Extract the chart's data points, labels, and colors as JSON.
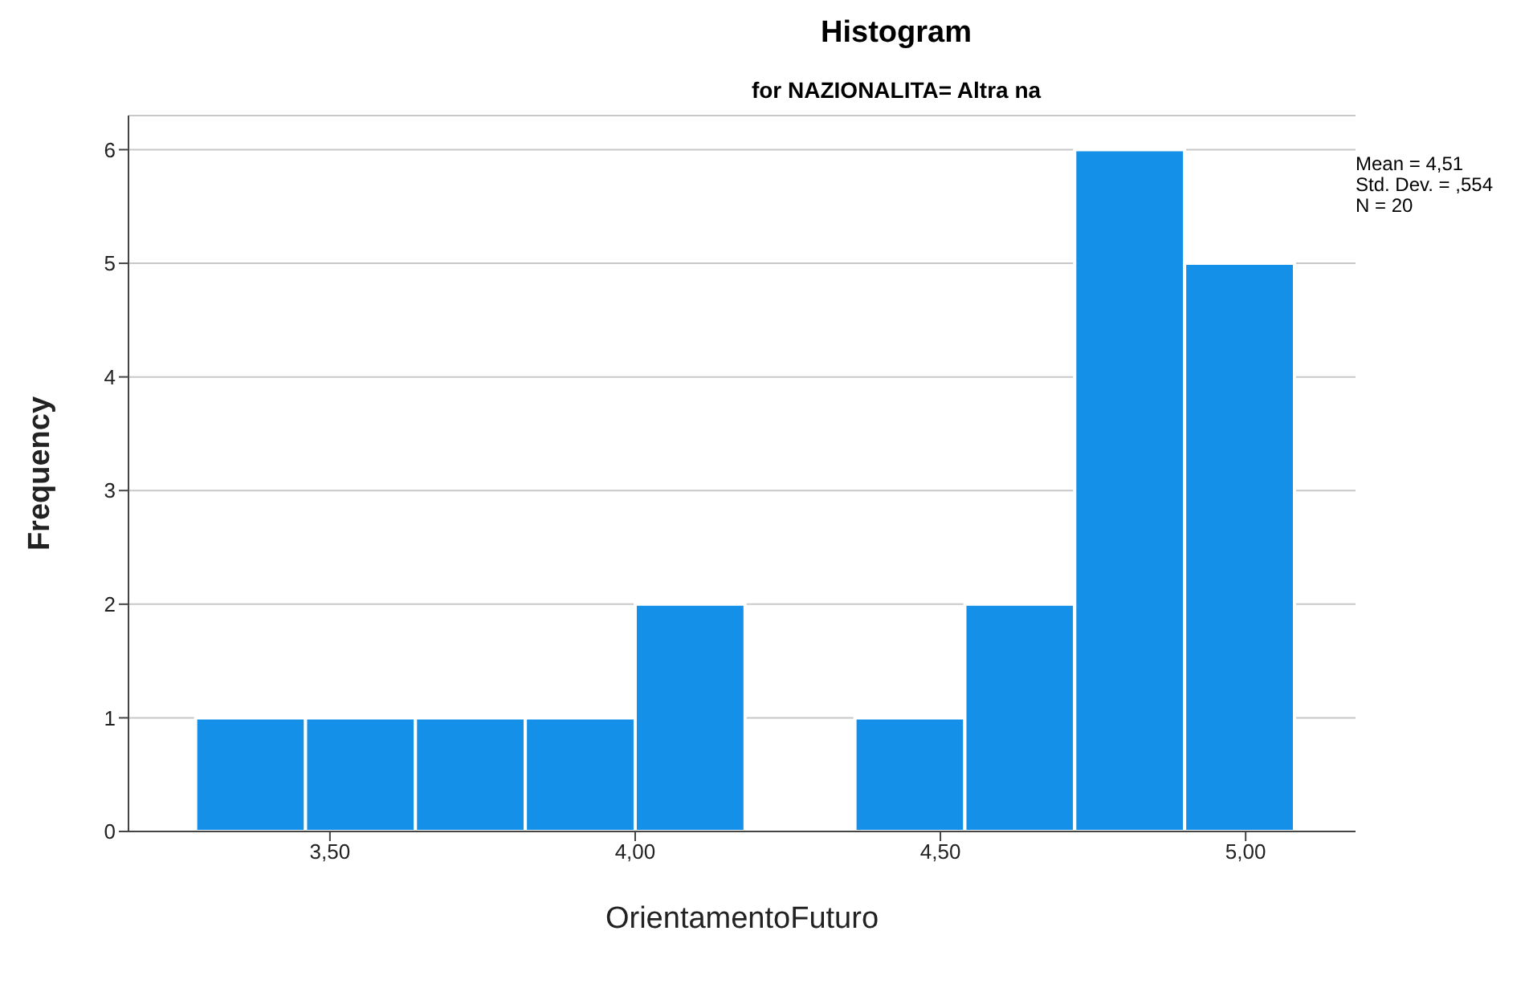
{
  "chart_data": {
    "type": "histogram",
    "title": "Histogram",
    "subtitle": "for NAZIONALITA= Altra na",
    "xlabel": "OrientamentoFuturo",
    "ylabel": "Frequency",
    "bins": [
      3.28,
      3.46,
      3.64,
      3.82,
      4.0,
      4.18,
      4.36,
      4.54,
      4.72,
      4.9,
      5.08
    ],
    "values": [
      1,
      1,
      1,
      1,
      2,
      0,
      1,
      2,
      6,
      5
    ],
    "color": "#1590e8",
    "xlim": [
      3.17,
      5.18
    ],
    "xticks": [
      {
        "value": 3.5,
        "label": "3,50"
      },
      {
        "value": 4.0,
        "label": "4,00"
      },
      {
        "value": 4.5,
        "label": "4,50"
      },
      {
        "value": 5.0,
        "label": "5,00"
      }
    ],
    "ylim": [
      0,
      6.3
    ],
    "yticks": [
      0,
      1,
      2,
      3,
      4,
      5,
      6
    ],
    "grid": "y",
    "annotations": [
      "Mean = 4,51",
      "Std. Dev. = ,554",
      "N = 20"
    ]
  }
}
